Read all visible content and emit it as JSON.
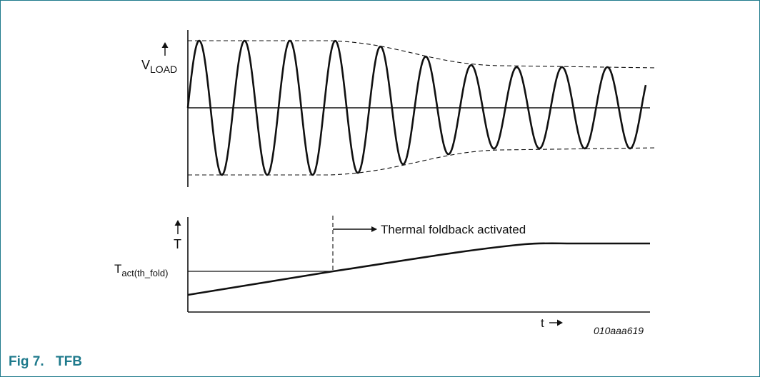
{
  "colors": {
    "frame": "#1f7a8c",
    "caption": "#1f7a8c",
    "ink": "#111111"
  },
  "top_plot": {
    "y_label_main": "V",
    "y_label_sub": "LOAD",
    "arrow_icon": "arrow-up-icon"
  },
  "bottom_plot": {
    "y_label": "T",
    "threshold_label_main": "T",
    "threshold_label_sub": "act(th_fold)",
    "annotation": "Thermal foldback activated",
    "x_label": "t",
    "code": "010aaa619"
  },
  "caption": {
    "number": "Fig 7.",
    "title": "TFB"
  }
}
